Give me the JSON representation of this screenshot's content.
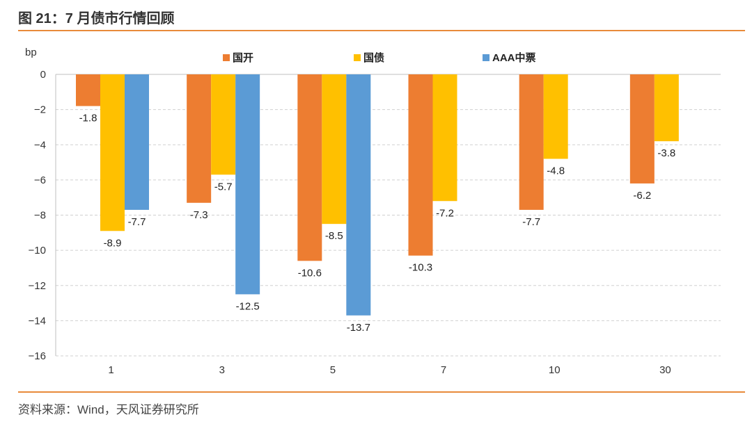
{
  "title": "图 21：7 月债市行情回顾",
  "source": "资料来源：Wind，天风证券研究所",
  "chart_data": {
    "type": "bar",
    "title": "图 21：7 月债市行情回顾",
    "ylabel": "bp",
    "xlabel": "",
    "ylim": [
      -16,
      0
    ],
    "yticks": [
      0,
      -2,
      -4,
      -6,
      -8,
      -10,
      -12,
      -14,
      -16
    ],
    "categories": [
      "1",
      "3",
      "5",
      "7",
      "10",
      "30"
    ],
    "grid": true,
    "legend": "top-center",
    "series": [
      {
        "name": "国开",
        "color": "#ED7D31",
        "values": [
          -1.8,
          -7.3,
          -10.6,
          -10.3,
          -7.7,
          -6.2
        ]
      },
      {
        "name": "国债",
        "color": "#FFC000",
        "values": [
          -8.9,
          -5.7,
          -8.5,
          -7.2,
          -4.8,
          -3.8
        ]
      },
      {
        "name": "AAA中票",
        "color": "#5B9BD5",
        "values": [
          -7.7,
          -12.5,
          -13.7,
          null,
          null,
          null
        ]
      }
    ]
  }
}
